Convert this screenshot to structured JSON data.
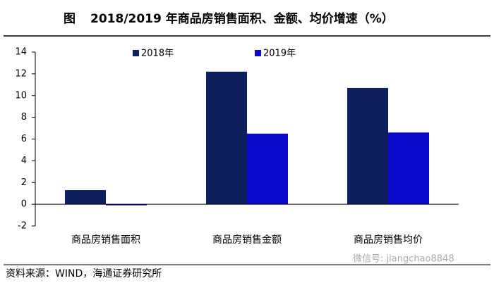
{
  "chart_data": {
    "type": "bar",
    "figure_label": "图",
    "title": "2018/2019 年商品房销售面积、金额、均价增速（%）",
    "categories": [
      "商品房销售面积",
      "商品房销售金额",
      "商品房销售均价"
    ],
    "series": [
      {
        "name": "2018年",
        "color": "#0d1f5c",
        "values": [
          1.3,
          12.2,
          10.7
        ]
      },
      {
        "name": "2019年",
        "color": "#0a0acc",
        "values": [
          -0.1,
          6.5,
          6.6
        ]
      }
    ],
    "ylim": [
      -2,
      14
    ],
    "yticks": [
      -2,
      0,
      2,
      4,
      6,
      8,
      10,
      12,
      14
    ],
    "grid": false,
    "legend": "top",
    "source": "资料来源：WIND，海通证券研究所",
    "watermark": "微信号: jiangchao8848"
  }
}
